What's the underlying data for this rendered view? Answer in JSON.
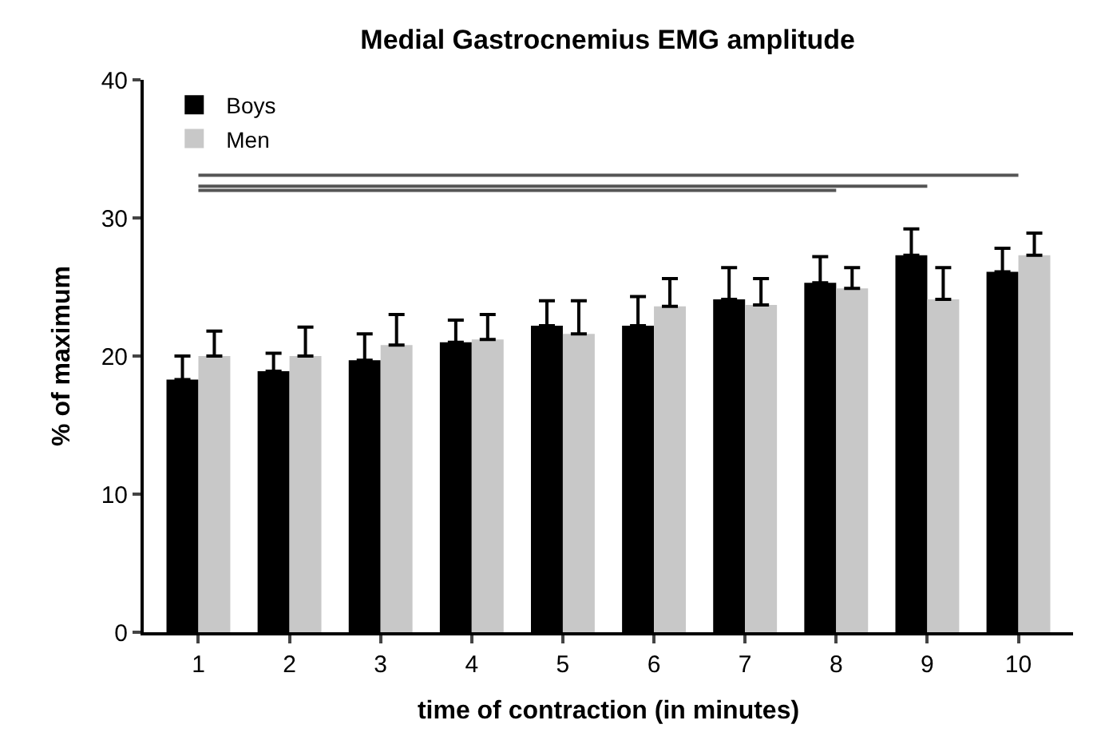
{
  "chart_data": {
    "type": "bar",
    "title": "Medial Gastrocnemius EMG amplitude",
    "xlabel": "time of contraction (in minutes)",
    "ylabel": "% of maximum",
    "categories": [
      "1",
      "2",
      "3",
      "4",
      "5",
      "6",
      "7",
      "8",
      "9",
      "10"
    ],
    "series": [
      {
        "name": "Boys",
        "color": "#000000",
        "values": [
          18.3,
          18.9,
          19.7,
          21.0,
          22.2,
          22.2,
          24.1,
          25.3,
          27.3,
          26.1
        ],
        "errors": [
          [
            18.3,
            20.0
          ],
          [
            18.9,
            20.2
          ],
          [
            19.7,
            21.6
          ],
          [
            21.0,
            22.6
          ],
          [
            22.2,
            24.0
          ],
          [
            22.2,
            24.3
          ],
          [
            24.1,
            26.4
          ],
          [
            25.3,
            27.2
          ],
          [
            27.3,
            29.2
          ],
          [
            26.1,
            27.8
          ]
        ]
      },
      {
        "name": "Men",
        "color": "#c8c8c8",
        "values": [
          20.0,
          20.0,
          20.8,
          21.2,
          21.6,
          23.6,
          23.7,
          24.9,
          24.1,
          27.3
        ],
        "errors": [
          [
            20.0,
            21.8
          ],
          [
            20.0,
            22.1
          ],
          [
            20.8,
            23.0
          ],
          [
            21.2,
            23.0
          ],
          [
            21.6,
            24.0
          ],
          [
            23.6,
            25.6
          ],
          [
            23.7,
            25.6
          ],
          [
            24.9,
            26.4
          ],
          [
            24.1,
            26.4
          ],
          [
            27.3,
            28.9
          ]
        ]
      },
      {
        "type": "line",
        "color": "#555555",
        "values": [
          33.1,
          33.1,
          33.1,
          33.1,
          33.1,
          33.1,
          33.1,
          33.1,
          33.1,
          33.1
        ]
      },
      {
        "type": "line",
        "color": "#555555",
        "values": [
          32.3,
          32.3,
          32.3,
          32.3,
          32.3,
          32.3,
          32.3,
          32.3,
          32.3,
          null
        ]
      },
      {
        "type": "line",
        "color": "#555555",
        "values": [
          32.0,
          32.0,
          32.0,
          32.0,
          32.0,
          32.0,
          32.0,
          32.0,
          null,
          null
        ]
      }
    ],
    "ylim": [
      0,
      40
    ],
    "yticks": [
      0,
      10,
      20,
      30,
      40
    ],
    "legend": "top left"
  }
}
